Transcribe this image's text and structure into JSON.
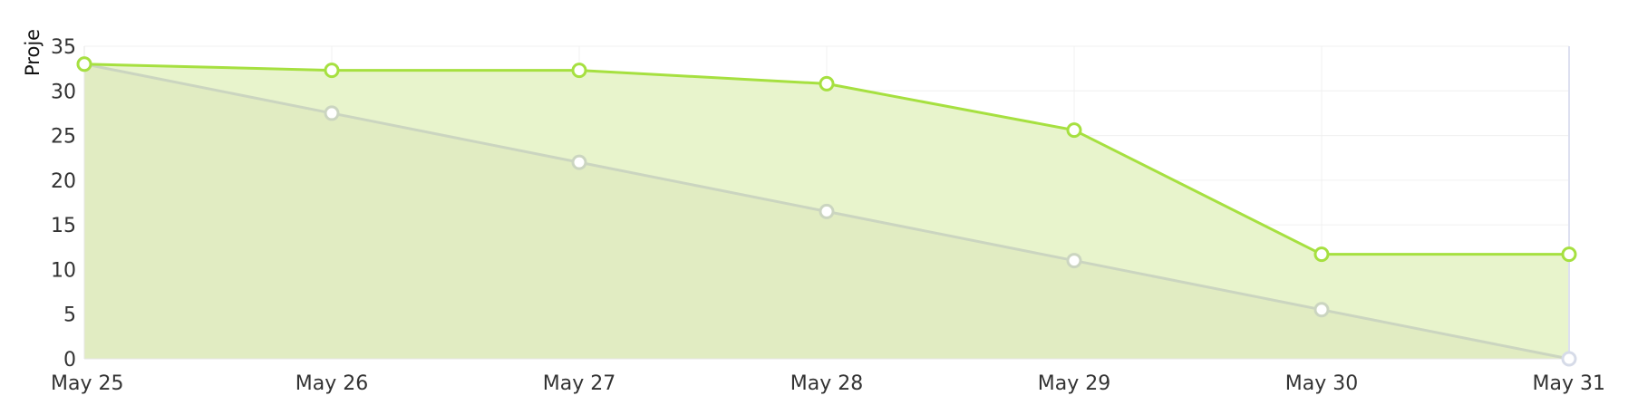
{
  "chart_data": {
    "type": "area",
    "title": "",
    "xlabel": "",
    "ylabel": "Proje",
    "categories": [
      "May 25",
      "May 26",
      "May 27",
      "May 28",
      "May 29",
      "May 30",
      "May 31"
    ],
    "yticks": [
      0,
      5,
      10,
      15,
      20,
      25,
      30,
      35
    ],
    "ylim": [
      0,
      35
    ],
    "grid": true,
    "legend": "none",
    "series": [
      {
        "values": [
          33,
          32.3,
          32.3,
          30.8,
          25.6,
          11.7,
          11.7
        ],
        "line_color": "#a6e040",
        "fill_color": "#e8f4cc"
      },
      {
        "values": [
          33,
          27.5,
          22,
          16.5,
          11,
          5.5,
          0
        ],
        "line_color": "#cbd5c0",
        "fill_color": "#dfeac0"
      }
    ]
  }
}
